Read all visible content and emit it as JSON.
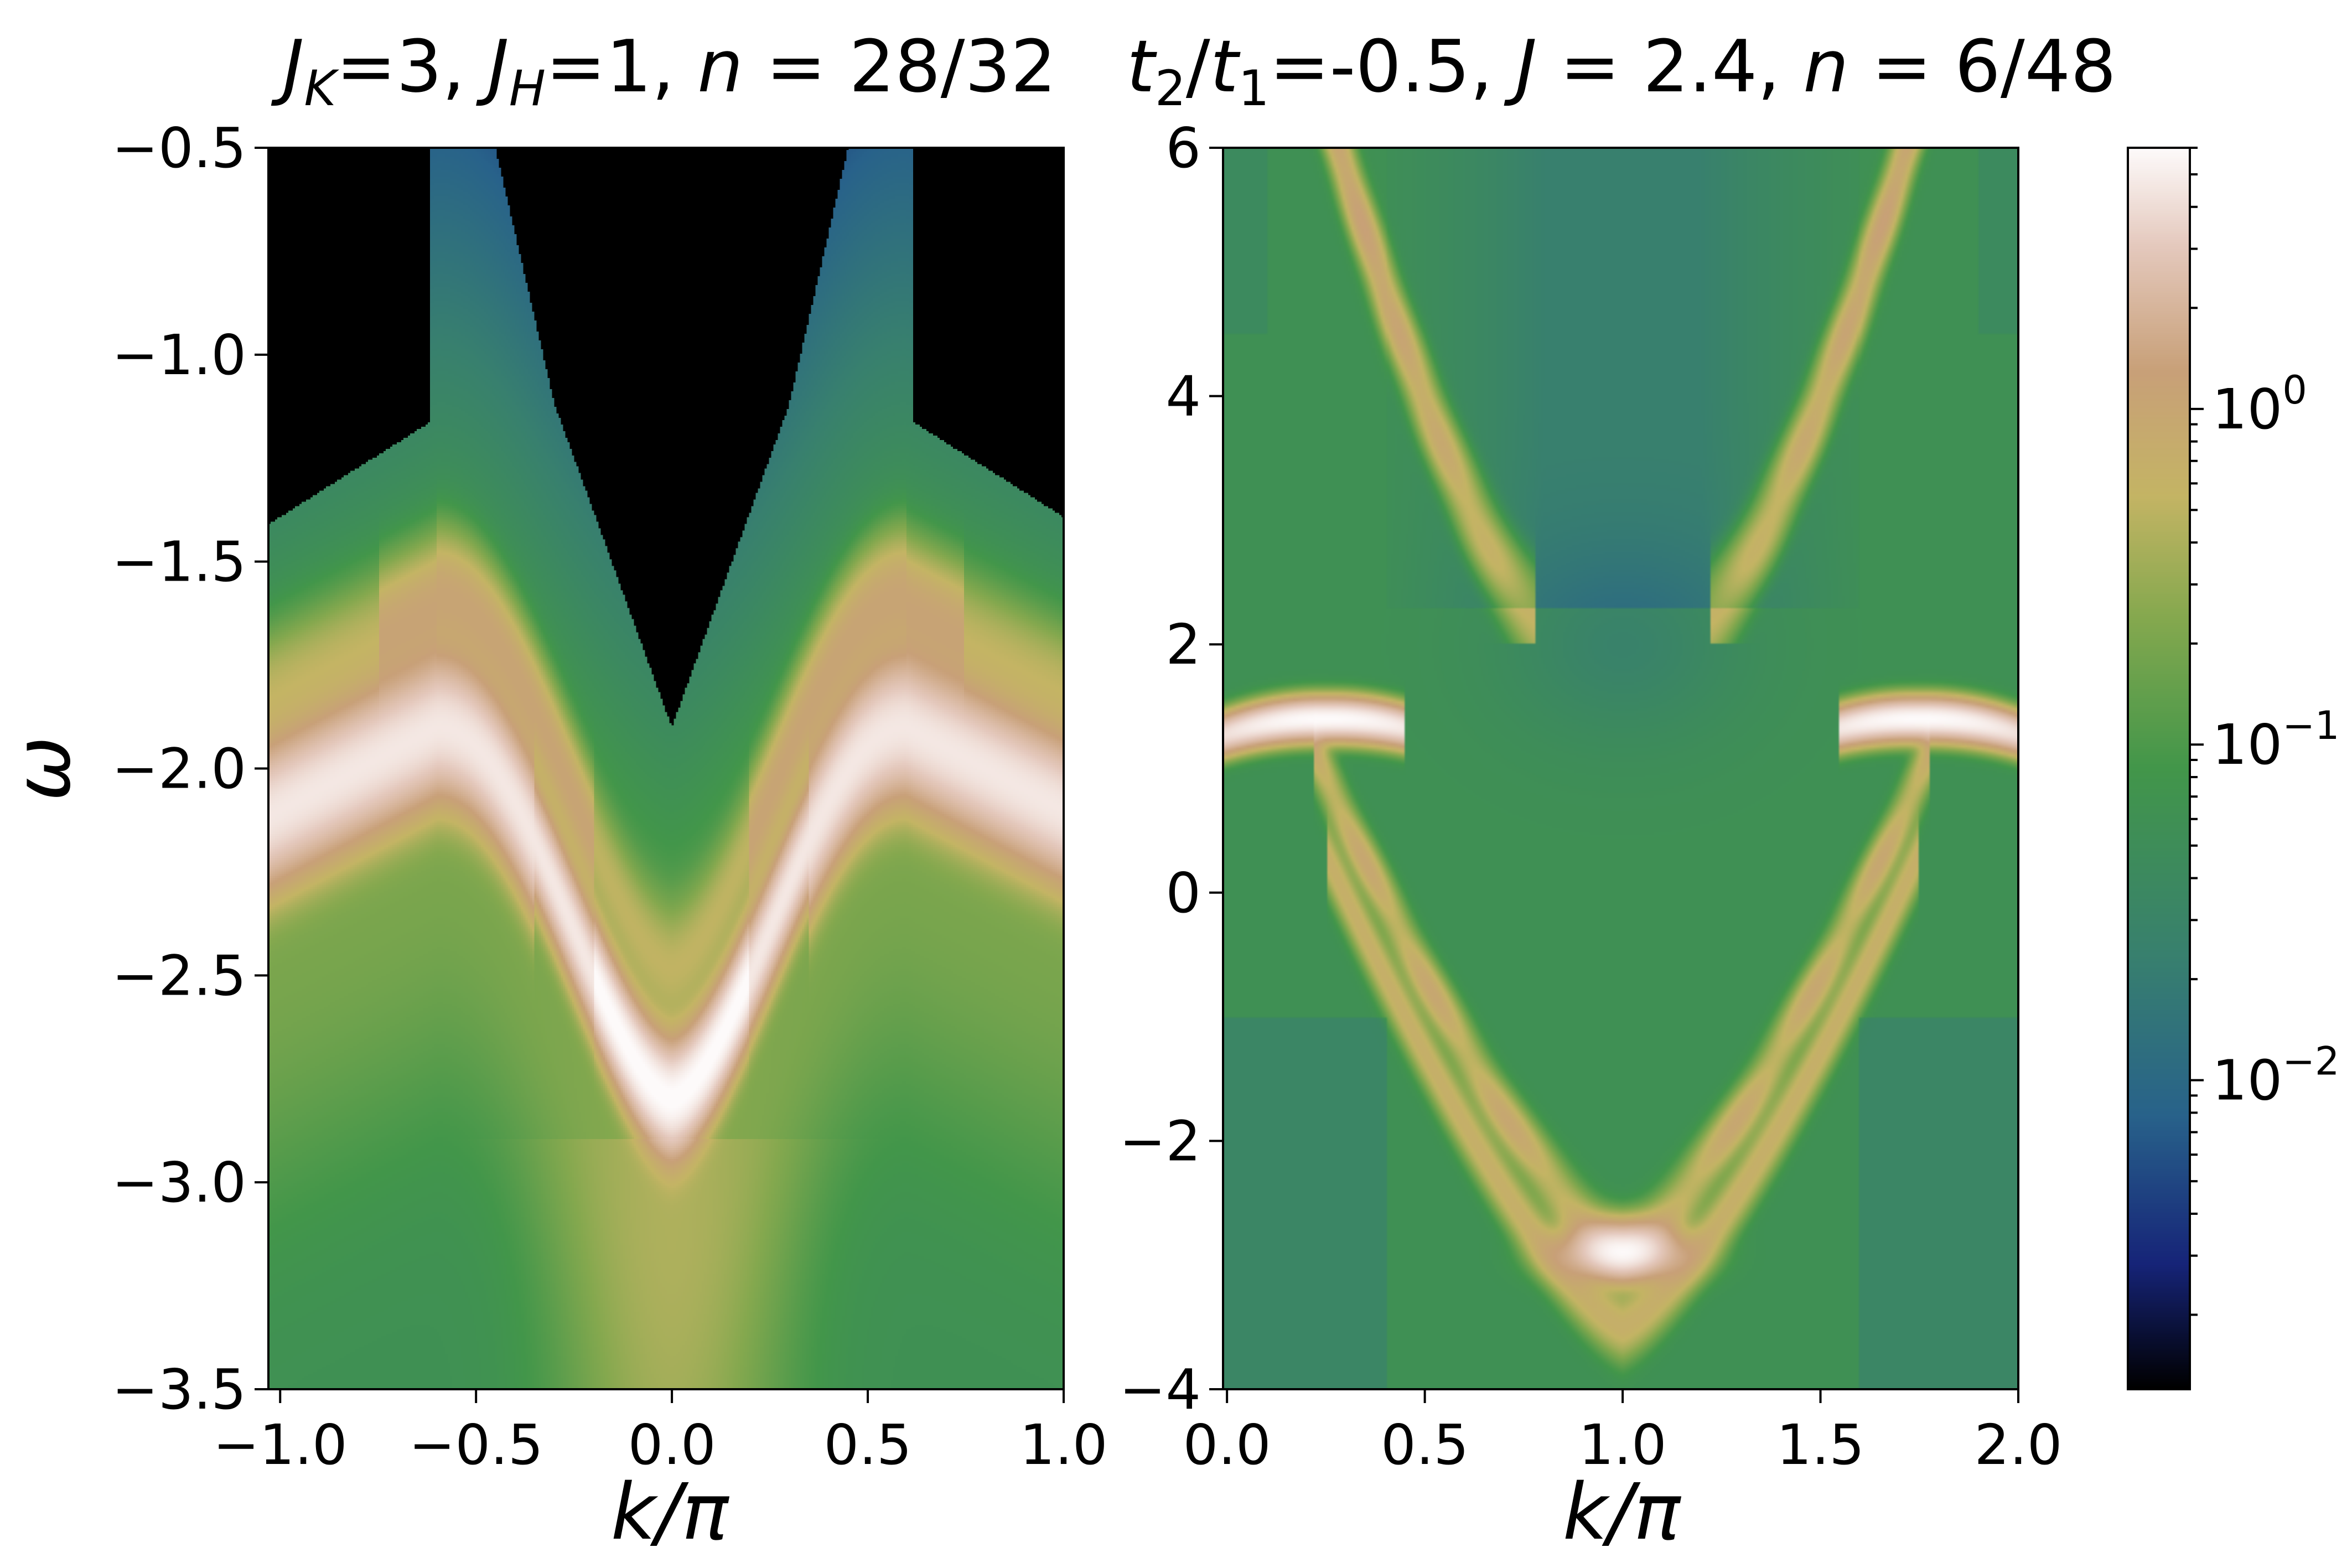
{
  "chart_data": [
    {
      "type": "heatmap",
      "title": "J_K=3, J_H=1, n = 28/32",
      "title_parts": {
        "jk_sym": "J",
        "jk_sub": "K",
        "jk_val": "=3, ",
        "jh_sym": "J",
        "jh_sub": "H",
        "jh_val": "=1, ",
        "n_sym": "n",
        "n_val": " = 28/32"
      },
      "xlabel": "k/π",
      "ylabel": "ω",
      "xlim": [
        -1.03,
        1.0
      ],
      "ylim": [
        -3.5,
        -0.5
      ],
      "x_ticks": [
        -1.0,
        -0.5,
        0.0,
        0.5,
        1.0
      ],
      "x_tick_labels": [
        "−1.0",
        "−0.5",
        "0.0",
        "0.5",
        "1.0"
      ],
      "y_ticks": [
        -0.5,
        -1.0,
        -1.5,
        -2.0,
        -2.5,
        -3.0,
        -3.5
      ],
      "y_tick_labels": [
        "−0.5",
        "−1.0",
        "−1.5",
        "−2.0",
        "−2.5",
        "−3.0",
        "−3.5"
      ],
      "description_values": {
        "main_band_minimum": {
          "k": 0.0,
          "omega": -2.8
        },
        "main_band_side_maxima": [
          {
            "k": -0.65,
            "omega": -1.9
          },
          {
            "k": 0.6,
            "omega": -1.9
          }
        ],
        "main_band_edges": [
          {
            "k": -1.0,
            "omega": -2.1
          },
          {
            "k": 1.0,
            "omega": -2.1
          }
        ],
        "empty_region_bottom": {
          "k": 0.0,
          "omega": -1.9
        }
      }
    },
    {
      "type": "heatmap",
      "title": "t2/t1=-0.5, J = 2.4, n = 6/48",
      "title_parts": {
        "t2_sym": "t",
        "t2_sub": "2",
        "slash": "/",
        "t1_sym": "t",
        "t1_sub": "1",
        "t_val": "=-0.5, ",
        "j_sym": "J",
        "j_val": " = 2.4, ",
        "n_sym": "n",
        "n_val": " = 6/48"
      },
      "xlabel": "k/π",
      "xlim": [
        -0.01,
        2.0
      ],
      "ylim": [
        -4,
        6
      ],
      "x_ticks": [
        0.0,
        0.5,
        1.0,
        1.5,
        2.0
      ],
      "x_tick_labels": [
        "0.0",
        "0.5",
        "1.0",
        "1.5",
        "2.0"
      ],
      "y_ticks": [
        6,
        4,
        2,
        0,
        -2,
        -4
      ],
      "y_tick_labels": [
        "6",
        "4",
        "2",
        "0",
        "−2",
        "−4"
      ],
      "description_values": {
        "lower_band_minimum": {
          "k": 1.0,
          "omega": -2.9
        },
        "bright_maxima": [
          {
            "k": 0.25,
            "omega": 1.4
          },
          {
            "k": 1.75,
            "omega": 1.4
          }
        ],
        "upper_band_minimum": {
          "k": 1.0,
          "omega": 2.2
        },
        "upper_band_edges_omega": 6.0
      }
    }
  ],
  "colorbar": {
    "scale": "log",
    "colormap": "gist_earth",
    "range": [
      0.0012,
      6.0
    ],
    "ticks": [
      {
        "value": 1.0,
        "base": "10",
        "exp": "0"
      },
      {
        "value": 0.1,
        "base": "10",
        "exp": "−1"
      },
      {
        "value": 0.01,
        "base": "10",
        "exp": "−2"
      }
    ]
  }
}
